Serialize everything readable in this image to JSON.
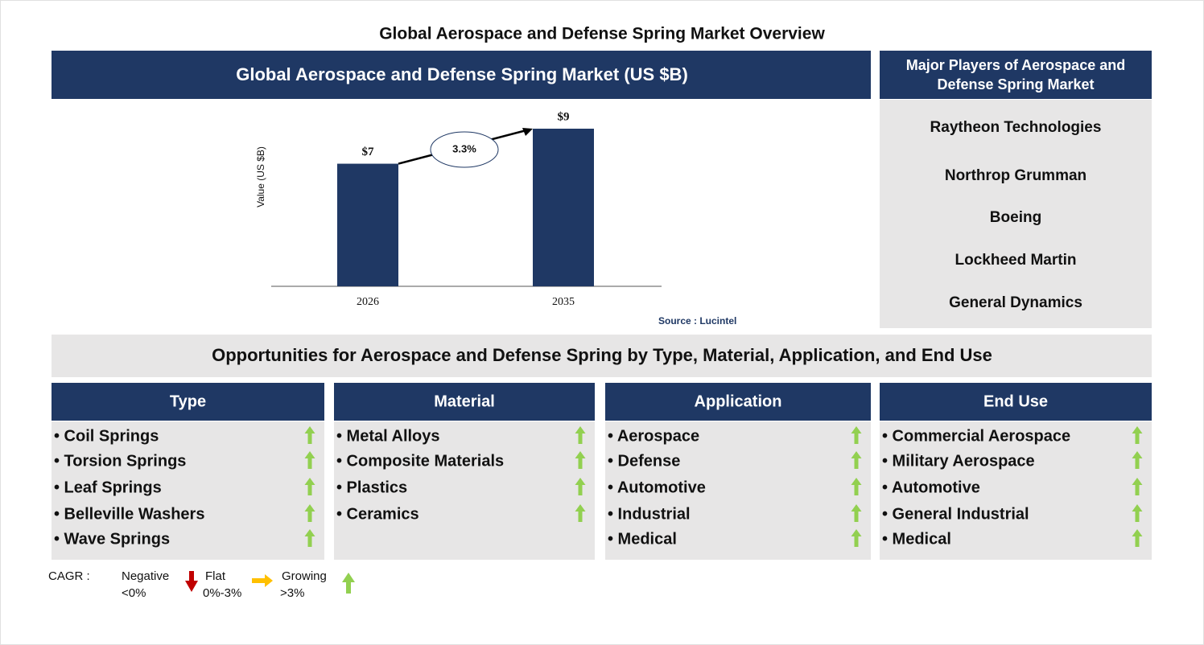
{
  "title": "Global Aerospace and Defense Spring Market Overview",
  "chart_data": {
    "type": "bar",
    "title": "Global Aerospace and Defense Spring Market (US $B)",
    "y_label": "Value (US $B)",
    "categories": [
      "2026",
      "2035"
    ],
    "values": [
      7,
      9
    ],
    "value_labels": [
      "$7",
      "$9"
    ],
    "color": "#1f3864",
    "annotation": "3.3%",
    "source": "Source : Lucintel"
  },
  "players": {
    "title": "Major Players of Aerospace and Defense Spring Market",
    "items": [
      "Raytheon Technologies",
      "Northrop Grumman",
      "Boeing",
      "Lockheed Martin",
      "General Dynamics"
    ]
  },
  "opportunities": {
    "title": "Opportunities for Aerospace and Defense Spring by Type, Material, Application, and End Use",
    "columns": [
      {
        "title": "Type",
        "items": [
          "• Coil Springs",
          "• Torsion Springs",
          "• Leaf Springs",
          "• Belleville Washers",
          "• Wave Springs"
        ]
      },
      {
        "title": "Material",
        "items": [
          "• Metal Alloys",
          "• Composite Materials",
          "• Plastics",
          "• Ceramics"
        ]
      },
      {
        "title": "Application",
        "items": [
          "• Aerospace",
          "• Defense",
          "• Automotive",
          "• Industrial",
          "• Medical"
        ]
      },
      {
        "title": "End Use",
        "items": [
          "• Commercial Aerospace",
          "• Military Aerospace",
          "• Automotive",
          "• General Industrial",
          "• Medical"
        ]
      }
    ]
  },
  "legend": {
    "label": "CAGR :",
    "negative": [
      "Negative",
      "<0%"
    ],
    "flat": [
      "Flat",
      "0%-3%"
    ],
    "growing": [
      "Growing",
      ">3%"
    ]
  }
}
